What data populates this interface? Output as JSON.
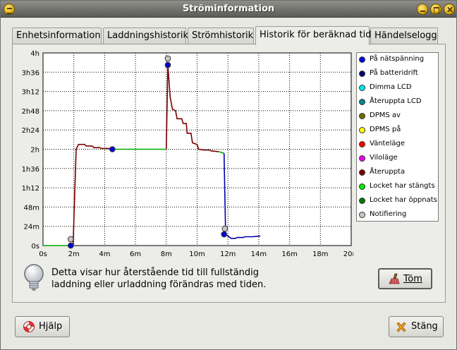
{
  "window": {
    "title": "Ströminformation"
  },
  "tabs": [
    {
      "label": "Enhetsinformation"
    },
    {
      "label": "Laddningshistorik"
    },
    {
      "label": "Strömhistorik"
    },
    {
      "label": "Historik för beräknad tid"
    },
    {
      "label": "Händelselogg"
    }
  ],
  "active_tab": 3,
  "chart_data": {
    "type": "line",
    "x_ticks": [
      "0s",
      "2m",
      "4m",
      "6m",
      "8m",
      "10m",
      "12m",
      "14m",
      "16m",
      "18m",
      "20m"
    ],
    "y_ticks": [
      "0s",
      "24m",
      "48m",
      "1h12",
      "1h36",
      "2h",
      "2h24",
      "2h48",
      "3h12",
      "3h36",
      "4h"
    ],
    "xlim_minutes": [
      0,
      20
    ],
    "ylim_minutes": [
      0,
      240
    ],
    "grid": true,
    "legend_position": "right",
    "series": [
      {
        "name": "På nätspänning",
        "color": "#0000dd"
      },
      {
        "name": "På batteridrift",
        "color": "#00006e"
      },
      {
        "name": "Dimma LCD",
        "color": "#00e5ee"
      },
      {
        "name": "Återuppta LCD",
        "color": "#008b8b"
      },
      {
        "name": "DPMS av",
        "color": "#6e6e00"
      },
      {
        "name": "DPMS på",
        "color": "#ffff00"
      },
      {
        "name": "Vänteläge",
        "color": "#ff0000"
      },
      {
        "name": "Viloläge",
        "color": "#ee00ee"
      },
      {
        "name": "Återuppta",
        "color": "#7a0000"
      },
      {
        "name": "Locket har stängts",
        "color": "#00ee00"
      },
      {
        "name": "Locket har öppnats",
        "color": "#007a00"
      },
      {
        "name": "Notifiering",
        "color": "#c8c8c8"
      }
    ],
    "lines": [
      {
        "color": "#00aa00",
        "points": [
          [
            0,
            0
          ],
          [
            1.85,
            0
          ]
        ]
      },
      {
        "color": "#7a0000",
        "points": [
          [
            1.85,
            0
          ],
          [
            1.95,
            0
          ],
          [
            2.15,
            120
          ],
          [
            2.3,
            126
          ],
          [
            2.7,
            126
          ],
          [
            2.8,
            124
          ],
          [
            3.2,
            124
          ],
          [
            3.3,
            122
          ],
          [
            3.7,
            122
          ],
          [
            3.8,
            121
          ],
          [
            4.3,
            121
          ],
          [
            4.45,
            120
          ]
        ]
      },
      {
        "color": "#00aa00",
        "points": [
          [
            4.45,
            120
          ],
          [
            8.0,
            120
          ]
        ]
      },
      {
        "color": "#7a0000",
        "points": [
          [
            8.0,
            120
          ],
          [
            8.1,
            225
          ],
          [
            8.25,
            185
          ],
          [
            8.4,
            170
          ],
          [
            8.6,
            168
          ],
          [
            8.7,
            158
          ],
          [
            9.0,
            158
          ],
          [
            9.1,
            152
          ],
          [
            9.3,
            152
          ],
          [
            9.35,
            140
          ],
          [
            9.6,
            140
          ],
          [
            9.7,
            128
          ],
          [
            10.0,
            126
          ],
          [
            10.1,
            120
          ],
          [
            10.4,
            119
          ],
          [
            10.8,
            119
          ],
          [
            10.9,
            118
          ],
          [
            11.4,
            117
          ]
        ]
      },
      {
        "color": "#00aa00",
        "points": [
          [
            11.4,
            117
          ],
          [
            11.75,
            115
          ]
        ]
      },
      {
        "color": "#0000aa",
        "points": [
          [
            11.75,
            115
          ],
          [
            11.85,
            14
          ],
          [
            12.0,
            12
          ],
          [
            12.2,
            9
          ],
          [
            12.5,
            9
          ],
          [
            12.6,
            10
          ],
          [
            13.0,
            10
          ],
          [
            13.1,
            11
          ],
          [
            13.6,
            11
          ],
          [
            14.1,
            12
          ]
        ]
      }
    ],
    "markers": [
      {
        "x": 1.8,
        "y": 8,
        "color": "#c8c8c8"
      },
      {
        "x": 1.8,
        "y": 0,
        "color": "#0000dd"
      },
      {
        "x": 4.5,
        "y": 120,
        "color": "#0000dd"
      },
      {
        "x": 8.1,
        "y": 233,
        "color": "#c8c8c8"
      },
      {
        "x": 8.1,
        "y": 225,
        "color": "#0000dd"
      },
      {
        "x": 11.8,
        "y": 21,
        "color": "#c8c8c8"
      },
      {
        "x": 11.75,
        "y": 14,
        "color": "#0000dd"
      }
    ]
  },
  "info": {
    "icon": "lightbulb-icon",
    "text_line1": "Detta visar hur återstående tid till fullständig",
    "text_line2": "laddning eller urladdning förändras med tiden."
  },
  "buttons": {
    "clear": "Töm",
    "help": "Hjälp",
    "close": "Stäng"
  }
}
